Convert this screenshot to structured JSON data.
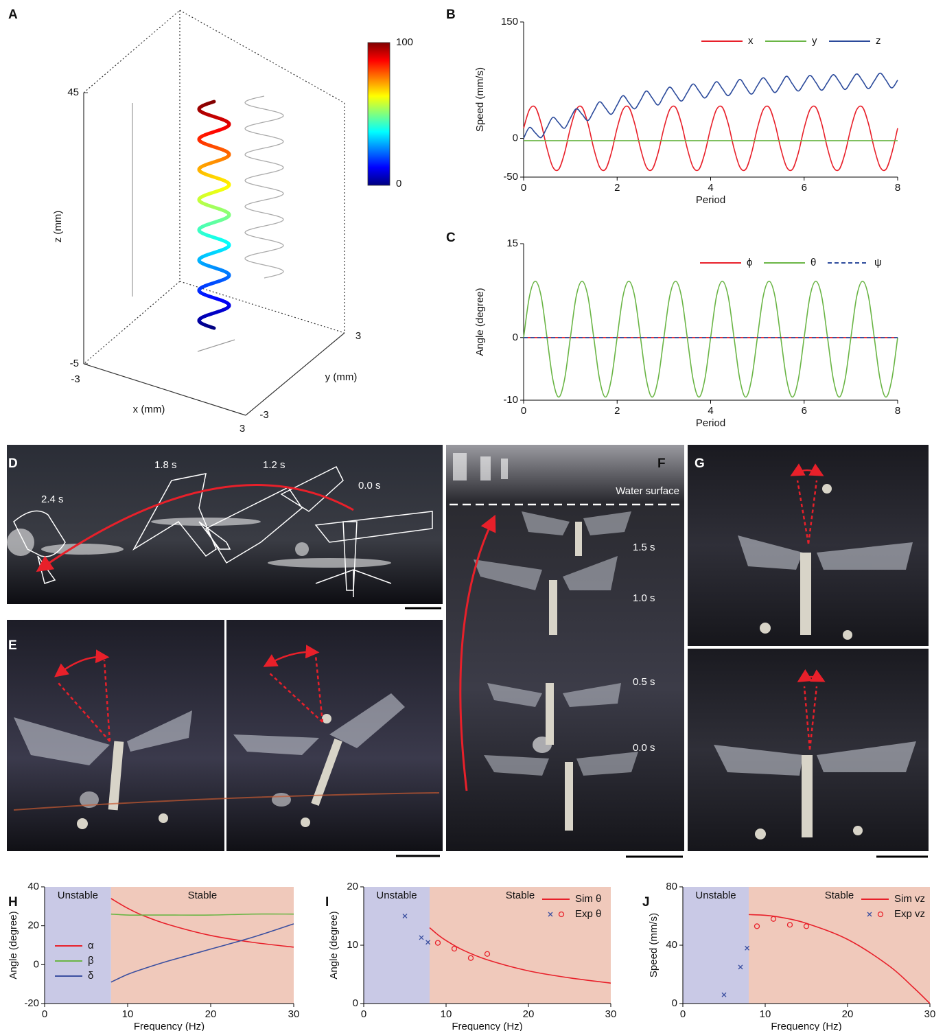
{
  "chart_data": [
    {
      "type": "helix3d",
      "label": "A",
      "xlabel": "x (mm)",
      "ylabel": "y (mm)",
      "zlabel": "z (mm)",
      "xlim": [
        -3,
        3
      ],
      "ylim": [
        -3,
        3
      ],
      "zlim": [
        -5,
        45
      ],
      "xticks": [
        -3,
        3
      ],
      "yticks": [
        -3,
        3
      ],
      "zticks": [
        -5,
        45
      ],
      "colorbar": {
        "lim": [
          0,
          100
        ],
        "ticks": [
          0,
          100
        ]
      }
    },
    {
      "type": "line",
      "label": "B",
      "xlabel": "Period",
      "ylabel": "Speed (mm/s)",
      "x": [
        0,
        0.125,
        0.25,
        0.375,
        0.5,
        0.625,
        0.75,
        0.875,
        1,
        1.125,
        1.25,
        1.375,
        1.5,
        1.625,
        1.75,
        1.875,
        2,
        2.125,
        2.25,
        2.375,
        2.5,
        2.625,
        2.75,
        2.875,
        3,
        3.125,
        3.25,
        3.375,
        3.5,
        3.625,
        3.75,
        3.875,
        4,
        4.125,
        4.25,
        4.375,
        4.5,
        4.625,
        4.75,
        4.875,
        5,
        5.125,
        5.25,
        5.375,
        5.5,
        5.625,
        5.75,
        5.875,
        6,
        6.125,
        6.25,
        6.375,
        6.5,
        6.625,
        6.75,
        6.875,
        7,
        7.125,
        7.25,
        7.375,
        7.5,
        7.625,
        7.75,
        7.875,
        8
      ],
      "xlim": [
        0,
        8
      ],
      "xticks": [
        0,
        2,
        4,
        6,
        8
      ],
      "ylim": [
        -50,
        150
      ],
      "yticks": [
        -50,
        0,
        150
      ],
      "legend": "upper right",
      "legend_orientation": "horizontal",
      "series": [
        {
          "name": "x",
          "color": "#e8202a",
          "values": [
            13,
            37,
            40,
            19,
            -13,
            -37,
            -40,
            -19,
            13,
            37,
            40,
            19,
            -13,
            -37,
            -40,
            -19,
            13,
            37,
            40,
            19,
            -13,
            -37,
            -40,
            -19,
            13,
            37,
            40,
            19,
            -13,
            -37,
            -40,
            -19,
            13,
            37,
            40,
            19,
            -13,
            -37,
            -40,
            -19,
            13,
            37,
            40,
            19,
            -13,
            -37,
            -40,
            -19,
            13,
            37,
            40,
            19,
            -13,
            -37,
            -40,
            -19,
            13,
            37,
            40,
            19,
            -13,
            -37,
            -40,
            -19,
            13
          ]
        },
        {
          "name": "y",
          "color": "#6ab545",
          "x": [
            0,
            8
          ],
          "values": [
            -3,
            -3
          ]
        },
        {
          "name": "z",
          "color": "#2b4a9b",
          "values": [
            0,
            14,
            7,
            1,
            14,
            27,
            20,
            13,
            26,
            38,
            31,
            23,
            35,
            47,
            39,
            31,
            43,
            55,
            46,
            38,
            49,
            61,
            52,
            43,
            55,
            66,
            57,
            48,
            59,
            70,
            61,
            52,
            62,
            73,
            64,
            55,
            65,
            76,
            66,
            57,
            68,
            78,
            69,
            59,
            69,
            80,
            70,
            61,
            71,
            81,
            72,
            62,
            72,
            82,
            73,
            63,
            73,
            83,
            74,
            64,
            74,
            84,
            75,
            65,
            75
          ]
        }
      ]
    },
    {
      "type": "line",
      "label": "C",
      "xlabel": "Period",
      "ylabel": "Angle (degree)",
      "x": [
        0,
        0.125,
        0.25,
        0.375,
        0.5,
        0.625,
        0.75,
        0.875,
        1,
        1.125,
        1.25,
        1.375,
        1.5,
        1.625,
        1.75,
        1.875,
        2,
        2.125,
        2.25,
        2.375,
        2.5,
        2.625,
        2.75,
        2.875,
        3,
        3.125,
        3.25,
        3.375,
        3.5,
        3.625,
        3.75,
        3.875,
        4,
        4.125,
        4.25,
        4.375,
        4.5,
        4.625,
        4.75,
        4.875,
        5,
        5.125,
        5.25,
        5.375,
        5.5,
        5.625,
        5.75,
        5.875,
        6,
        6.125,
        6.25,
        6.375,
        6.5,
        6.625,
        6.75,
        6.875,
        7,
        7.125,
        7.25,
        7.375,
        7.5,
        7.625,
        7.75,
        7.875,
        8
      ],
      "xlim": [
        0,
        8
      ],
      "xticks": [
        0,
        2,
        4,
        6,
        8
      ],
      "ylim": [
        -10,
        15
      ],
      "yticks": [
        -10,
        0,
        15
      ],
      "legend": "upper right",
      "legend_orientation": "horizontal",
      "series": [
        {
          "name": "ϕ",
          "color": "#e8202a",
          "x": [
            0,
            8
          ],
          "values": [
            0,
            0
          ]
        },
        {
          "name": "θ",
          "color": "#6ab545",
          "values": [
            0,
            6.6,
            9,
            6.6,
            0,
            -6.7,
            -9.5,
            -6.7,
            0,
            6.6,
            9,
            6.6,
            0,
            -6.7,
            -9.5,
            -6.7,
            0,
            6.6,
            9,
            6.6,
            0,
            -6.7,
            -9.5,
            -6.7,
            0,
            6.6,
            9,
            6.6,
            0,
            -6.7,
            -9.5,
            -6.7,
            0,
            6.6,
            9,
            6.6,
            0,
            -6.7,
            -9.5,
            -6.7,
            0,
            6.6,
            9,
            6.6,
            0,
            -6.7,
            -9.5,
            -6.7,
            0,
            6.6,
            9,
            6.6,
            0,
            -6.7,
            -9.5,
            -6.7,
            0,
            6.6,
            9,
            6.6,
            0,
            -6.7,
            -9.5,
            -6.7,
            0
          ]
        },
        {
          "name": "ψ",
          "color": "#2b4a9b",
          "dash": true,
          "x": [
            0,
            8
          ],
          "values": [
            0,
            0
          ]
        }
      ]
    },
    {
      "type": "line",
      "label": "H",
      "xlabel": "Frequency (Hz)",
      "ylabel": "Angle (degree)",
      "xlim": [
        0,
        30
      ],
      "xticks": [
        0,
        10,
        20,
        30
      ],
      "ylim": [
        -20,
        40
      ],
      "yticks": [
        -20,
        0,
        20,
        40
      ],
      "legend": "lower left",
      "legend_orientation": "vertical",
      "regions": [
        {
          "label": "Unstable",
          "from": 0,
          "to": 8,
          "color": "#c9c9e6"
        },
        {
          "label": "Stable",
          "from": 8,
          "to": 30,
          "color": "#f0c9bb"
        }
      ],
      "series": [
        {
          "name": "α",
          "color": "#e8202a",
          "x": [
            8,
            10,
            12,
            15,
            20,
            25,
            30
          ],
          "values": [
            34,
            29,
            25,
            20.5,
            15,
            11.5,
            9
          ]
        },
        {
          "name": "β",
          "color": "#6ab545",
          "x": [
            8,
            10,
            12,
            15,
            20,
            25,
            30
          ],
          "values": [
            26,
            25.5,
            25.5,
            25.5,
            25.5,
            26,
            26
          ]
        },
        {
          "name": "δ",
          "color": "#3a4fa0",
          "x": [
            8,
            10,
            12,
            15,
            20,
            25,
            30
          ],
          "values": [
            -9,
            -5,
            -2,
            2,
            8,
            14,
            21
          ]
        }
      ]
    },
    {
      "type": "line",
      "label": "I",
      "xlabel": "Frequency (Hz)",
      "ylabel": "Angle (degree)",
      "xlim": [
        0,
        30
      ],
      "xticks": [
        0,
        10,
        20,
        30
      ],
      "ylim": [
        0,
        20
      ],
      "yticks": [
        0,
        10,
        20
      ],
      "legend": "upper right",
      "legend_orientation": "vertical",
      "regions": [
        {
          "label": "Unstable",
          "from": 0,
          "to": 8,
          "color": "#c9c9e6"
        },
        {
          "label": "Stable",
          "from": 8,
          "to": 30,
          "color": "#f0c9bb"
        }
      ],
      "series": [
        {
          "name": "Sim θ",
          "color": "#e8202a",
          "x": [
            8,
            9,
            10,
            12,
            15,
            20,
            25,
            30
          ],
          "values": [
            13,
            11.8,
            10.8,
            9.2,
            7.5,
            5.6,
            4.4,
            3.5
          ]
        },
        {
          "name": "Exp θ",
          "style": "markers",
          "marker_colors": {
            "x": "#3a4fa0",
            "o": "#e8202a"
          },
          "x": [
            5,
            7,
            7.8,
            9,
            11,
            13,
            15
          ],
          "values": [
            15,
            11.3,
            10.5,
            10.4,
            9.4,
            7.8,
            8.5
          ],
          "markers": [
            "x",
            "x",
            "x",
            "o",
            "o",
            "o",
            "o"
          ]
        }
      ]
    },
    {
      "type": "line",
      "label": "J",
      "xlabel": "Frequency (Hz)",
      "ylabel": "Speed (mm/s)",
      "xlim": [
        0,
        30
      ],
      "xticks": [
        0,
        10,
        20,
        30
      ],
      "ylim": [
        0,
        80
      ],
      "yticks": [
        0,
        40,
        80
      ],
      "legend": "upper right",
      "legend_orientation": "vertical",
      "regions": [
        {
          "label": "Unstable",
          "from": 0,
          "to": 8,
          "color": "#c9c9e6"
        },
        {
          "label": "Stable",
          "from": 8,
          "to": 30,
          "color": "#f0c9bb"
        }
      ],
      "series": [
        {
          "name": "Sim vz",
          "color": "#e8202a",
          "x": [
            8,
            10,
            12,
            15,
            20,
            25,
            28,
            30
          ],
          "values": [
            61,
            60.5,
            59,
            55,
            44,
            26,
            11,
            0
          ]
        },
        {
          "name": "Exp vz",
          "style": "markers",
          "marker_colors": {
            "x": "#3a4fa0",
            "o": "#e8202a"
          },
          "x": [
            5,
            7,
            7.8,
            9,
            11,
            13,
            15
          ],
          "values": [
            6,
            25,
            38,
            53,
            58,
            54,
            53
          ],
          "markers": [
            "x",
            "x",
            "x",
            "o",
            "o",
            "o",
            "o"
          ]
        }
      ]
    }
  ],
  "photos": [
    {
      "label": "D",
      "times": [
        "2.4 s",
        "1.8 s",
        "1.2 s",
        "0.0 s"
      ]
    },
    {
      "label": "E"
    },
    {
      "label": "F",
      "surface": "Water surface",
      "times": [
        "1.5 s",
        "1.0 s",
        "0.5 s",
        "0.0 s"
      ]
    },
    {
      "label": "G"
    }
  ]
}
